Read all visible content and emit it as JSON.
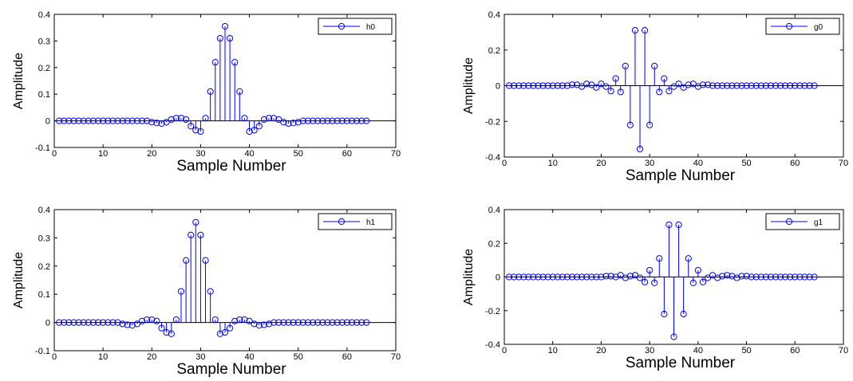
{
  "colors": {
    "stem": "#0000ff",
    "axis": "#000000",
    "background": "#ffffff"
  },
  "chart_data": [
    {
      "id": "h0",
      "type": "stem",
      "xlabel": "Sample Number",
      "ylabel": "Amplitude",
      "xlim": [
        0,
        70
      ],
      "ylim": [
        -0.1,
        0.4
      ],
      "xticks": [
        "0",
        "10",
        "20",
        "30",
        "40",
        "50",
        "60",
        "70"
      ],
      "yticks": [
        "0.4",
        "0.3",
        "0.2",
        "0.1",
        "0",
        "-0.1"
      ],
      "grid": false,
      "legend_position": "top-right",
      "series": [
        {
          "name": "h0",
          "x": [
            1,
            2,
            3,
            4,
            5,
            6,
            7,
            8,
            9,
            10,
            11,
            12,
            13,
            14,
            15,
            16,
            17,
            18,
            19,
            20,
            21,
            22,
            23,
            24,
            25,
            26,
            27,
            28,
            29,
            30,
            31,
            32,
            33,
            34,
            35,
            36,
            37,
            38,
            39,
            40,
            41,
            42,
            43,
            44,
            45,
            46,
            47,
            48,
            49,
            50,
            51,
            52,
            53,
            54,
            55,
            56,
            57,
            58,
            59,
            60,
            61,
            62,
            63,
            64
          ],
          "y": [
            0,
            0,
            0,
            0,
            0,
            0,
            0,
            0,
            0,
            0,
            0,
            0,
            0,
            0,
            0,
            0,
            0,
            0,
            0,
            -0.005,
            -0.008,
            -0.01,
            -0.005,
            0.005,
            0.01,
            0.01,
            0.005,
            -0.02,
            -0.035,
            -0.04,
            0.01,
            0.11,
            0.22,
            0.31,
            0.355,
            0.31,
            0.22,
            0.11,
            0.01,
            -0.04,
            -0.035,
            -0.02,
            0.005,
            0.01,
            0.01,
            0.005,
            -0.005,
            -0.01,
            -0.008,
            -0.005,
            0,
            0,
            0,
            0,
            0,
            0,
            0,
            0,
            0,
            0,
            0,
            0,
            0,
            0
          ]
        }
      ]
    },
    {
      "id": "g0",
      "type": "stem",
      "xlabel": "Sample Number",
      "ylabel": "Amplitude",
      "xlim": [
        0,
        70
      ],
      "ylim": [
        -0.4,
        0.4
      ],
      "xticks": [
        "0",
        "10",
        "20",
        "30",
        "40",
        "50",
        "60",
        "70"
      ],
      "yticks": [
        "0.4",
        "0.2",
        "0",
        "-0.2",
        "-0.4"
      ],
      "grid": false,
      "legend_position": "top-right",
      "series": [
        {
          "name": "g0",
          "x": [
            1,
            2,
            3,
            4,
            5,
            6,
            7,
            8,
            9,
            10,
            11,
            12,
            13,
            14,
            15,
            16,
            17,
            18,
            19,
            20,
            21,
            22,
            23,
            24,
            25,
            26,
            27,
            28,
            29,
            30,
            31,
            32,
            33,
            34,
            35,
            36,
            37,
            38,
            39,
            40,
            41,
            42,
            43,
            44,
            45,
            46,
            47,
            48,
            49,
            50,
            51,
            52,
            53,
            54,
            55,
            56,
            57,
            58,
            59,
            60,
            61,
            62,
            63,
            64
          ],
          "y": [
            0,
            0,
            0,
            0,
            0,
            0,
            0,
            0,
            0,
            0,
            0,
            0,
            0,
            0.005,
            0.005,
            -0.005,
            0.01,
            0.005,
            -0.01,
            0.01,
            -0.005,
            -0.03,
            0.04,
            -0.035,
            0.11,
            -0.22,
            0.31,
            -0.355,
            0.31,
            -0.22,
            0.11,
            -0.035,
            0.04,
            -0.03,
            -0.005,
            0.01,
            -0.01,
            0.005,
            0.01,
            -0.005,
            0.005,
            0.005,
            0,
            0,
            0,
            0,
            0,
            0,
            0,
            0,
            0,
            0,
            0,
            0,
            0,
            0,
            0,
            0,
            0,
            0,
            0,
            0,
            0,
            0
          ]
        }
      ]
    },
    {
      "id": "h1",
      "type": "stem",
      "xlabel": "Sample Number",
      "ylabel": "Amplitude",
      "xlim": [
        0,
        70
      ],
      "ylim": [
        -0.1,
        0.4
      ],
      "xticks": [
        "0",
        "10",
        "20",
        "30",
        "40",
        "50",
        "60",
        "70"
      ],
      "yticks": [
        "0.4",
        "0.3",
        "0.2",
        "0.1",
        "0",
        "-0.1"
      ],
      "grid": false,
      "legend_position": "top-right",
      "series": [
        {
          "name": "h1",
          "x": [
            1,
            2,
            3,
            4,
            5,
            6,
            7,
            8,
            9,
            10,
            11,
            12,
            13,
            14,
            15,
            16,
            17,
            18,
            19,
            20,
            21,
            22,
            23,
            24,
            25,
            26,
            27,
            28,
            29,
            30,
            31,
            32,
            33,
            34,
            35,
            36,
            37,
            38,
            39,
            40,
            41,
            42,
            43,
            44,
            45,
            46,
            47,
            48,
            49,
            50,
            51,
            52,
            53,
            54,
            55,
            56,
            57,
            58,
            59,
            60,
            61,
            62,
            63,
            64
          ],
          "y": [
            0,
            0,
            0,
            0,
            0,
            0,
            0,
            0,
            0,
            0,
            0,
            0,
            0,
            -0.005,
            -0.008,
            -0.01,
            -0.005,
            0.005,
            0.01,
            0.01,
            0.005,
            -0.02,
            -0.035,
            -0.04,
            0.01,
            0.11,
            0.22,
            0.31,
            0.355,
            0.31,
            0.22,
            0.11,
            0.01,
            -0.04,
            -0.035,
            -0.02,
            0.005,
            0.01,
            0.01,
            0.005,
            -0.005,
            -0.01,
            -0.008,
            -0.005,
            0,
            0,
            0,
            0,
            0,
            0,
            0,
            0,
            0,
            0,
            0,
            0,
            0,
            0,
            0,
            0,
            0,
            0,
            0,
            0
          ]
        }
      ]
    },
    {
      "id": "g1",
      "type": "stem",
      "xlabel": "Sample Number",
      "ylabel": "Amplitude",
      "xlim": [
        0,
        70
      ],
      "ylim": [
        -0.4,
        0.4
      ],
      "xticks": [
        "0",
        "10",
        "20",
        "30",
        "40",
        "50",
        "60",
        "70"
      ],
      "yticks": [
        "0.4",
        "0.2",
        "0",
        "-0.2",
        "-0.4"
      ],
      "grid": false,
      "legend_position": "top-right",
      "series": [
        {
          "name": "g1",
          "x": [
            1,
            2,
            3,
            4,
            5,
            6,
            7,
            8,
            9,
            10,
            11,
            12,
            13,
            14,
            15,
            16,
            17,
            18,
            19,
            20,
            21,
            22,
            23,
            24,
            25,
            26,
            27,
            28,
            29,
            30,
            31,
            32,
            33,
            34,
            35,
            36,
            37,
            38,
            39,
            40,
            41,
            42,
            43,
            44,
            45,
            46,
            47,
            48,
            49,
            50,
            51,
            52,
            53,
            54,
            55,
            56,
            57,
            58,
            59,
            60,
            61,
            62,
            63,
            64
          ],
          "y": [
            0,
            0,
            0,
            0,
            0,
            0,
            0,
            0,
            0,
            0,
            0,
            0,
            0,
            0,
            0,
            0,
            0,
            0,
            0,
            0,
            0.005,
            0.005,
            0,
            0.01,
            -0.005,
            0.005,
            0.01,
            -0.005,
            -0.03,
            0.04,
            -0.035,
            0.11,
            -0.22,
            0.31,
            -0.355,
            0.31,
            -0.22,
            0.11,
            -0.035,
            0.04,
            -0.03,
            -0.005,
            0.01,
            -0.005,
            0.005,
            0.01,
            0.005,
            -0.005,
            0.005,
            0.005,
            0,
            0,
            0,
            0,
            0,
            0,
            0,
            0,
            0,
            0,
            0,
            0,
            0,
            0
          ]
        }
      ]
    }
  ]
}
